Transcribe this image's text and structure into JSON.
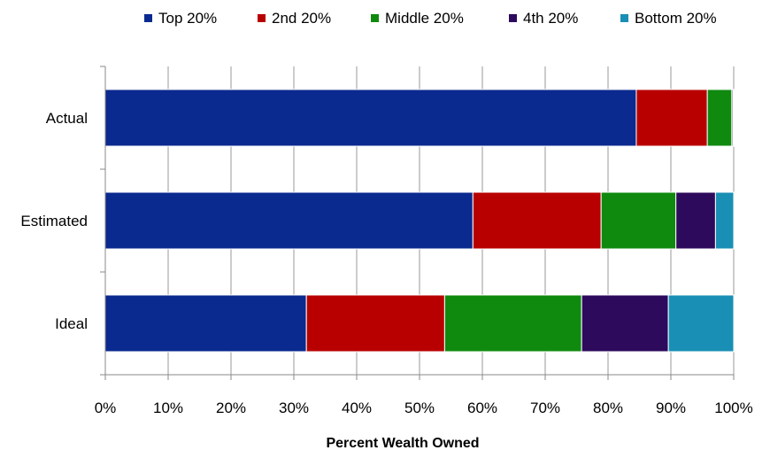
{
  "chart_data": {
    "type": "bar",
    "orientation": "horizontal",
    "stacked": true,
    "title": "",
    "xlabel": "Percent Wealth Owned",
    "ylabel": "",
    "xlim": [
      0,
      100
    ],
    "x_ticks": [
      "0%",
      "10%",
      "20%",
      "30%",
      "40%",
      "50%",
      "60%",
      "70%",
      "80%",
      "90%",
      "100%"
    ],
    "categories": [
      "Actual",
      "Estimated",
      "Ideal"
    ],
    "series": [
      {
        "name": "Top 20%",
        "color": "#0b2a8f",
        "values": [
          84.5,
          58.5,
          32.0
        ]
      },
      {
        "name": "2nd 20%",
        "color": "#b90000",
        "values": [
          11.3,
          20.4,
          22.0
        ]
      },
      {
        "name": "Middle 20%",
        "color": "#0f8a0f",
        "values": [
          3.9,
          11.9,
          21.8
        ]
      },
      {
        "name": "4th 20%",
        "color": "#2d0a5c",
        "values": [
          0.2,
          6.3,
          13.8
        ]
      },
      {
        "name": "Bottom 20%",
        "color": "#1a8fb5",
        "values": [
          0.1,
          2.9,
          10.4
        ]
      }
    ],
    "grid": true,
    "legend_position": "top"
  }
}
